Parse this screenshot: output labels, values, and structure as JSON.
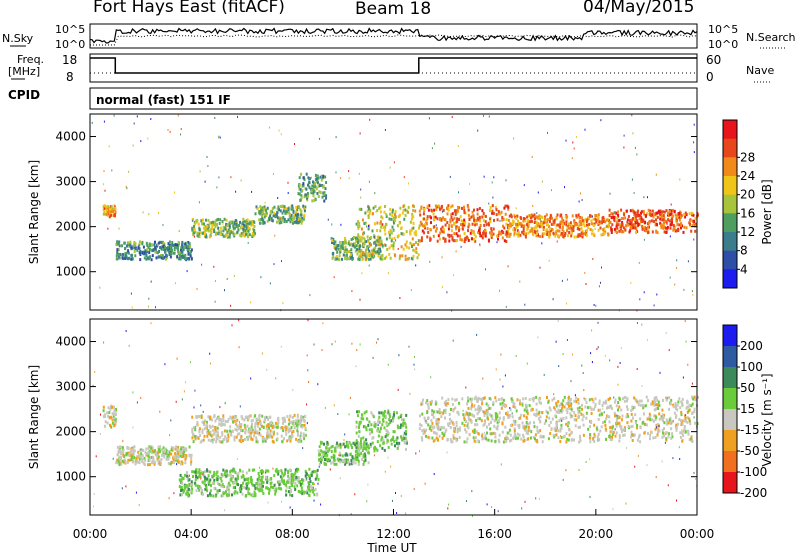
{
  "header": {
    "station": "Fort Hays East (fitACF)",
    "beam": "Beam 18",
    "date": "04/May/2015"
  },
  "nsky_panel": {
    "left_label": "N.Sky",
    "right_label": "N.Search",
    "tick_high": "10^5",
    "tick_low": "10^0"
  },
  "freq_panel": {
    "left_label_1": "Freq.",
    "left_label_2": "[MHz]",
    "left_tick_high": "18",
    "left_tick_low": "8",
    "right_label": "Nave",
    "right_tick_high": "60",
    "right_tick_low": "0"
  },
  "cpid": {
    "label": "CPID",
    "mode_text": "normal (fast) 151 IF"
  },
  "chart_data": [
    {
      "type": "heatmap",
      "name": "power",
      "ylabel": "Slant Range [km]",
      "ylim": [
        150,
        4500
      ],
      "yticks": [
        "1000",
        "2000",
        "3000",
        "4000"
      ],
      "colorbar": {
        "label": "Power [dB]",
        "ticks": [
          "4",
          "8",
          "12",
          "16",
          "20",
          "24",
          "28"
        ],
        "colors": [
          "#1c1cf0",
          "#2d4fa8",
          "#3b7d8c",
          "#4e9e60",
          "#a8c43a",
          "#f0c419",
          "#f08a1a",
          "#e8461b",
          "#e8141b"
        ]
      },
      "bands": [
        {
          "x": [
            0.5,
            1.0
          ],
          "y": [
            2250,
            2500
          ],
          "level": 0.7
        },
        {
          "x": [
            1.0,
            4.0
          ],
          "y": [
            1300,
            1700
          ],
          "level": 0.3
        },
        {
          "x": [
            4.0,
            6.5
          ],
          "y": [
            1800,
            2200
          ],
          "level": 0.45
        },
        {
          "x": [
            6.5,
            8.5
          ],
          "y": [
            2100,
            2500
          ],
          "level": 0.4
        },
        {
          "x": [
            8.2,
            9.3
          ],
          "y": [
            2600,
            3200
          ],
          "level": 0.35
        },
        {
          "x": [
            9.5,
            11.5
          ],
          "y": [
            1300,
            1800
          ],
          "level": 0.4
        },
        {
          "x": [
            10.5,
            13.0
          ],
          "y": [
            1300,
            2500
          ],
          "level": 0.55
        },
        {
          "x": [
            13.0,
            16.5
          ],
          "y": [
            1700,
            2500
          ],
          "level": 0.8
        },
        {
          "x": [
            16.5,
            20.5
          ],
          "y": [
            1800,
            2300
          ],
          "level": 0.75
        },
        {
          "x": [
            20.5,
            24.0
          ],
          "y": [
            1900,
            2400
          ],
          "level": 0.85
        }
      ]
    },
    {
      "type": "heatmap",
      "name": "velocity",
      "ylabel": "Slant Range [km]",
      "xlabel": "Time UT",
      "xticks": [
        "00:00",
        "04:00",
        "08:00",
        "12:00",
        "16:00",
        "20:00",
        "00:00"
      ],
      "xlim": [
        0,
        24
      ],
      "ylim": [
        150,
        4500
      ],
      "yticks": [
        "1000",
        "2000",
        "3000",
        "4000"
      ],
      "colorbar": {
        "label": "Velocity [m s⁻¹]",
        "ticks": [
          "200",
          "100",
          "50",
          "15",
          "-15",
          "-50",
          "-100",
          "-200"
        ],
        "colors": [
          "#1c1cf0",
          "#2d5aa0",
          "#3c8a5a",
          "#6acc3a",
          "#c8c8c0",
          "#f0a020",
          "#f07020",
          "#e8141b"
        ]
      },
      "bands": [
        {
          "x": [
            0.5,
            1.0
          ],
          "y": [
            2100,
            2600
          ],
          "level": 4
        },
        {
          "x": [
            1.0,
            4.0
          ],
          "y": [
            1300,
            1700
          ],
          "level": 4
        },
        {
          "x": [
            4.0,
            8.5
          ],
          "y": [
            1800,
            2400
          ],
          "level": 4
        },
        {
          "x": [
            3.5,
            9.0
          ],
          "y": [
            600,
            1200
          ],
          "level": 3
        },
        {
          "x": [
            9.0,
            11.0
          ],
          "y": [
            1300,
            1800
          ],
          "level": 3
        },
        {
          "x": [
            10.5,
            12.5
          ],
          "y": [
            1600,
            2500
          ],
          "level": 3
        },
        {
          "x": [
            13.0,
            24.0
          ],
          "y": [
            1800,
            2800
          ],
          "level": 4
        }
      ]
    }
  ]
}
